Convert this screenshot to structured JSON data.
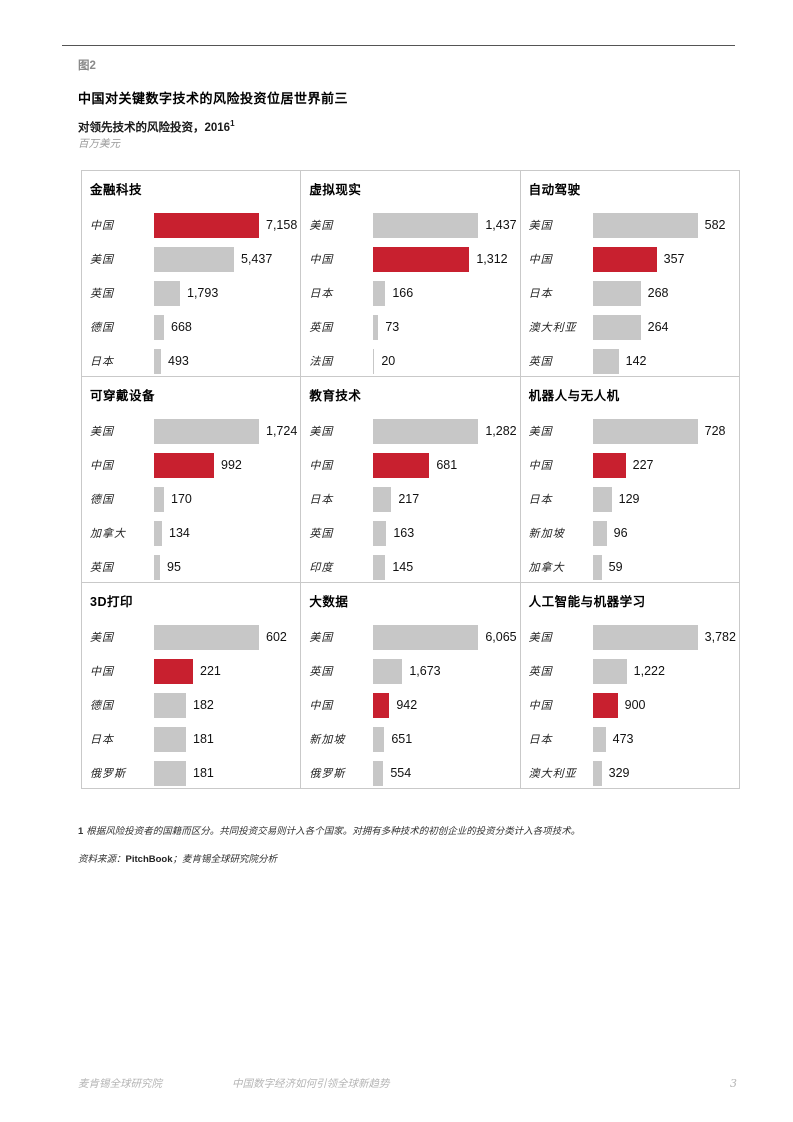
{
  "page": {
    "figure_label": "图2",
    "title": "中国对关键数字技术的风险投资位居世界前三",
    "subtitle": "对领先技术的风险投资，2016",
    "subtitle_superscript": "1",
    "unit": "百万美元"
  },
  "colors": {
    "highlight_bar": "#C8202F",
    "default_bar": "#C7C7C7"
  },
  "chart_data": [
    {
      "type": "bar",
      "title": "金融科技",
      "categories": [
        "中国",
        "美国",
        "英国",
        "德国",
        "日本"
      ],
      "values": [
        7158,
        5437,
        1793,
        668,
        493
      ],
      "highlight": "中国"
    },
    {
      "type": "bar",
      "title": "虚拟现实",
      "categories": [
        "美国",
        "中国",
        "日本",
        "英国",
        "法国"
      ],
      "values": [
        1437,
        1312,
        166,
        73,
        20
      ],
      "highlight": "中国"
    },
    {
      "type": "bar",
      "title": "自动驾驶",
      "categories": [
        "美国",
        "中国",
        "日本",
        "澳大利亚",
        "英国"
      ],
      "values": [
        582,
        357,
        268,
        264,
        142
      ],
      "highlight": "中国"
    },
    {
      "type": "bar",
      "title": "可穿戴设备",
      "categories": [
        "美国",
        "中国",
        "德国",
        "加拿大",
        "英国"
      ],
      "values": [
        1724,
        992,
        170,
        134,
        95
      ],
      "highlight": "中国"
    },
    {
      "type": "bar",
      "title": "教育技术",
      "categories": [
        "美国",
        "中国",
        "日本",
        "英国",
        "印度"
      ],
      "values": [
        1282,
        681,
        217,
        163,
        145
      ],
      "highlight": "中国"
    },
    {
      "type": "bar",
      "title": "机器人与无人机",
      "categories": [
        "美国",
        "中国",
        "日本",
        "新加坡",
        "加拿大"
      ],
      "values": [
        728,
        227,
        129,
        96,
        59
      ],
      "highlight": "中国"
    },
    {
      "type": "bar",
      "title": "3D打印",
      "categories": [
        "美国",
        "中国",
        "德国",
        "日本",
        "俄罗斯"
      ],
      "values": [
        602,
        221,
        182,
        181,
        181
      ],
      "highlight": "中国"
    },
    {
      "type": "bar",
      "title": "大数据",
      "categories": [
        "美国",
        "英国",
        "中国",
        "新加坡",
        "俄罗斯"
      ],
      "values": [
        6065,
        1673,
        942,
        651,
        554
      ],
      "highlight": "中国"
    },
    {
      "type": "bar",
      "title": "人工智能与机器学习",
      "categories": [
        "美国",
        "英国",
        "中国",
        "日本",
        "澳大利亚"
      ],
      "values": [
        3782,
        1222,
        900,
        473,
        329
      ],
      "highlight": "中国"
    }
  ],
  "footnote": {
    "number": "1",
    "text": "根据风险投资者的国籍而区分。共同投资交易则计入各个国家。对拥有多种技术的初创企业的投资分类计入各项技术。"
  },
  "source": {
    "prefix": "资料来源：",
    "name": "PitchBook",
    "suffix": "；麦肯锡全球研究院分析"
  },
  "footer": {
    "left": "麦肯锡全球研究院",
    "center": "中国数字经济如何引领全球新趋势",
    "page_number": "3"
  }
}
